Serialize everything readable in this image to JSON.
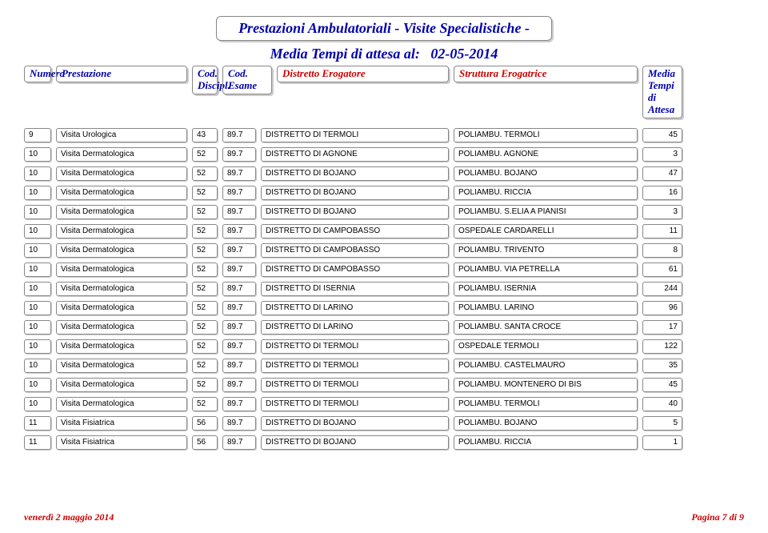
{
  "title_line1": "Prestazioni Ambulatoriali - Visite Specialistiche -",
  "title_line2_prefix": "Media Tempi di attesa al:",
  "title_date": "02-05-2014",
  "header": {
    "numero": "Numero",
    "prestazione": "Prestazione",
    "cod_discipl": "Cod.\nDiscipl.",
    "cod_esame": "Cod. Esame",
    "distretto": "Distretto Erogatore",
    "struttura": "Struttura Erogatrice",
    "media": "Media\nTempi\ndi Attesa"
  },
  "rows": [
    {
      "n": "9",
      "p": "Visita Urologica",
      "cd": "43",
      "ce": "89.7",
      "d": "DISTRETTO DI TERMOLI",
      "s": "POLIAMBU. TERMOLI",
      "m": "45"
    },
    {
      "n": "10",
      "p": "Visita Dermatologica",
      "cd": "52",
      "ce": "89.7",
      "d": "DISTRETTO DI AGNONE",
      "s": "POLIAMBU. AGNONE",
      "m": "3"
    },
    {
      "n": "10",
      "p": "Visita Dermatologica",
      "cd": "52",
      "ce": "89.7",
      "d": "DISTRETTO DI BOJANO",
      "s": "POLIAMBU. BOJANO",
      "m": "47"
    },
    {
      "n": "10",
      "p": "Visita Dermatologica",
      "cd": "52",
      "ce": "89.7",
      "d": "DISTRETTO DI BOJANO",
      "s": "POLIAMBU. RICCIA",
      "m": "16"
    },
    {
      "n": "10",
      "p": "Visita Dermatologica",
      "cd": "52",
      "ce": "89.7",
      "d": "DISTRETTO DI BOJANO",
      "s": "POLIAMBU. S.ELIA A PIANISI",
      "m": "3"
    },
    {
      "n": "10",
      "p": "Visita Dermatologica",
      "cd": "52",
      "ce": "89.7",
      "d": "DISTRETTO DI CAMPOBASSO",
      "s": "OSPEDALE CARDARELLI",
      "m": "11"
    },
    {
      "n": "10",
      "p": "Visita Dermatologica",
      "cd": "52",
      "ce": "89.7",
      "d": "DISTRETTO DI CAMPOBASSO",
      "s": "POLIAMBU. TRIVENTO",
      "m": "8"
    },
    {
      "n": "10",
      "p": "Visita Dermatologica",
      "cd": "52",
      "ce": "89.7",
      "d": "DISTRETTO DI CAMPOBASSO",
      "s": "POLIAMBU. VIA PETRELLA",
      "m": "61"
    },
    {
      "n": "10",
      "p": "Visita Dermatologica",
      "cd": "52",
      "ce": "89.7",
      "d": "DISTRETTO DI ISERNIA",
      "s": "POLIAMBU. ISERNIA",
      "m": "244"
    },
    {
      "n": "10",
      "p": "Visita Dermatologica",
      "cd": "52",
      "ce": "89.7",
      "d": "DISTRETTO DI LARINO",
      "s": "POLIAMBU. LARINO",
      "m": "96"
    },
    {
      "n": "10",
      "p": "Visita Dermatologica",
      "cd": "52",
      "ce": "89.7",
      "d": "DISTRETTO DI LARINO",
      "s": "POLIAMBU. SANTA CROCE",
      "m": "17"
    },
    {
      "n": "10",
      "p": "Visita Dermatologica",
      "cd": "52",
      "ce": "89.7",
      "d": "DISTRETTO DI TERMOLI",
      "s": "OSPEDALE TERMOLI",
      "m": "122"
    },
    {
      "n": "10",
      "p": "Visita Dermatologica",
      "cd": "52",
      "ce": "89.7",
      "d": "DISTRETTO DI TERMOLI",
      "s": "POLIAMBU. CASTELMAURO",
      "m": "35"
    },
    {
      "n": "10",
      "p": "Visita Dermatologica",
      "cd": "52",
      "ce": "89.7",
      "d": "DISTRETTO DI TERMOLI",
      "s": "POLIAMBU. MONTENERO DI BIS",
      "m": "45"
    },
    {
      "n": "10",
      "p": "Visita Dermatologica",
      "cd": "52",
      "ce": "89.7",
      "d": "DISTRETTO DI TERMOLI",
      "s": "POLIAMBU. TERMOLI",
      "m": "40"
    },
    {
      "n": "11",
      "p": "Visita Fisiatrica",
      "cd": "56",
      "ce": "89.7",
      "d": "DISTRETTO DI BOJANO",
      "s": "POLIAMBU. BOJANO",
      "m": "5"
    },
    {
      "n": "11",
      "p": "Visita Fisiatrica",
      "cd": "56",
      "ce": "89.7",
      "d": "DISTRETTO DI BOJANO",
      "s": "POLIAMBU. RICCIA",
      "m": "1"
    }
  ],
  "footer": {
    "date": "venerdì 2 maggio 2014",
    "page": "Pagina 7 di 9"
  },
  "colors": {
    "blue": "#0000aa",
    "red": "#cc0000",
    "border": "#888888",
    "shadow": "#cccccc"
  }
}
